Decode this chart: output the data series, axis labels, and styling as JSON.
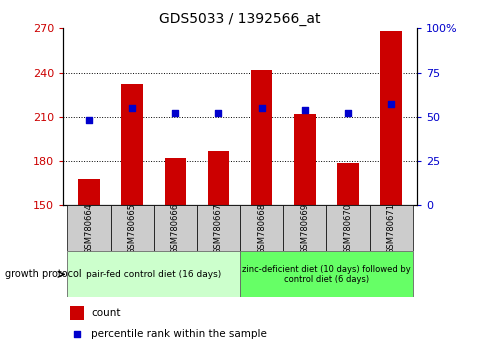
{
  "title": "GDS5033 / 1392566_at",
  "samples": [
    "GSM780664",
    "GSM780665",
    "GSM780666",
    "GSM780667",
    "GSM780668",
    "GSM780669",
    "GSM780670",
    "GSM780671"
  ],
  "counts": [
    168,
    232,
    182,
    187,
    242,
    212,
    179,
    268
  ],
  "percentiles": [
    48,
    55,
    52,
    52,
    55,
    54,
    52,
    57
  ],
  "ylim_left": [
    150,
    270
  ],
  "ylim_right": [
    0,
    100
  ],
  "yticks_left": [
    150,
    180,
    210,
    240,
    270
  ],
  "yticks_right": [
    0,
    25,
    50,
    75,
    100
  ],
  "bar_color": "#cc0000",
  "dot_color": "#0000cc",
  "bar_bottom": 150,
  "group1_label": "pair-fed control diet (16 days)",
  "group2_label": "zinc-deficient diet (10 days) followed by\ncontrol diet (6 days)",
  "group1_color": "#ccffcc",
  "group2_color": "#66ff66",
  "growth_protocol_label": "growth protocol",
  "legend_count_label": "count",
  "legend_pct_label": "percentile rank within the sample",
  "sample_box_color": "#cccccc",
  "left_axis_color": "#cc0000",
  "right_axis_color": "#0000cc"
}
